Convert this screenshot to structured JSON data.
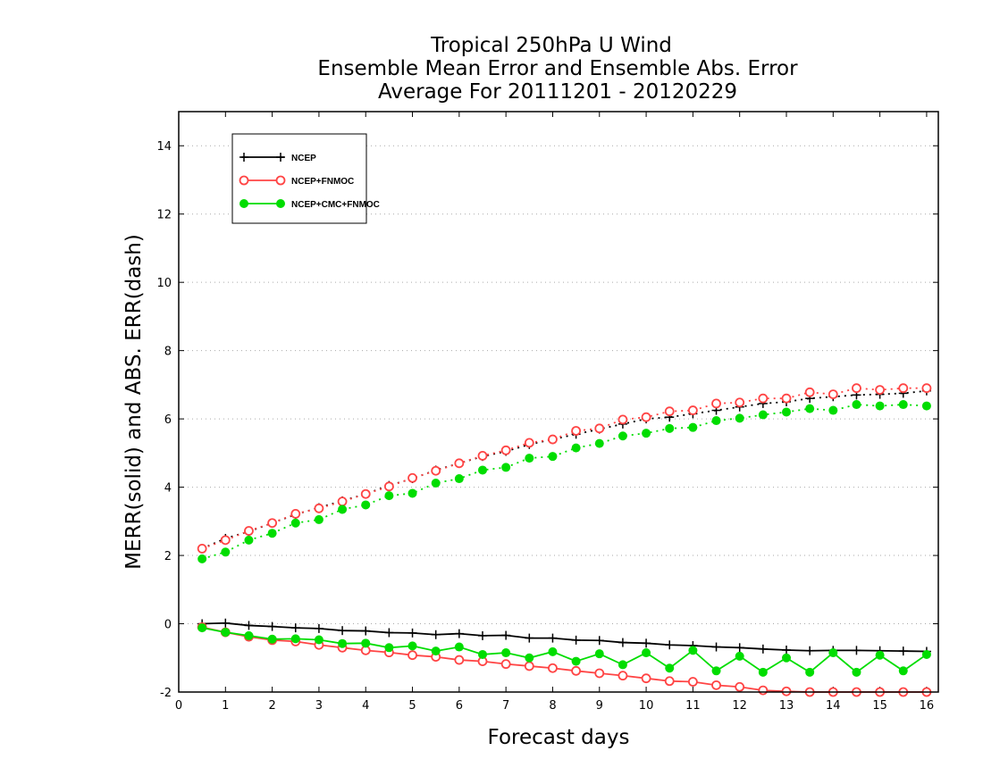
{
  "chart_data": {
    "type": "line",
    "title": [
      "Tropical 250hPa U Wind",
      "Ensemble Mean Error and Ensemble Abs. Error",
      "Average For 20111201 - 20120229"
    ],
    "xlabel": "Forecast days",
    "ylabel": "MERR(solid) and ABS. ERR(dash)",
    "xlim": [
      0,
      16.25
    ],
    "ylim": [
      -2,
      15
    ],
    "xticks": [
      0,
      1,
      2,
      3,
      4,
      5,
      6,
      7,
      8,
      9,
      10,
      11,
      12,
      13,
      14,
      15,
      16
    ],
    "yticks": [
      -2,
      0,
      2,
      4,
      6,
      8,
      10,
      12,
      14
    ],
    "grid": "horizontal dotted",
    "legend_position": "top-left",
    "x": [
      0.5,
      1,
      1.5,
      2,
      2.5,
      3,
      3.5,
      4,
      4.5,
      5,
      5.5,
      6,
      6.5,
      7,
      7.5,
      8,
      8.5,
      9,
      9.5,
      10,
      10.5,
      11,
      11.5,
      12,
      12.5,
      13,
      13.5,
      14,
      14.5,
      15,
      15.5,
      16
    ],
    "series": [
      {
        "name": "NCEP",
        "color": "#000000",
        "marker": "plus",
        "mean_error": [
          0.0,
          0.02,
          -0.05,
          -0.08,
          -0.12,
          -0.14,
          -0.2,
          -0.21,
          -0.26,
          -0.27,
          -0.32,
          -0.29,
          -0.35,
          -0.34,
          -0.42,
          -0.42,
          -0.48,
          -0.49,
          -0.55,
          -0.57,
          -0.62,
          -0.64,
          -0.68,
          -0.7,
          -0.74,
          -0.77,
          -0.79,
          -0.78,
          -0.78,
          -0.79,
          -0.8,
          -0.81
        ],
        "abs_error": [
          2.2,
          2.5,
          2.7,
          2.95,
          3.2,
          3.4,
          3.6,
          3.8,
          4.05,
          4.25,
          4.5,
          4.7,
          4.9,
          5.05,
          5.25,
          5.4,
          5.55,
          5.7,
          5.85,
          6.0,
          6.05,
          6.15,
          6.25,
          6.35,
          6.45,
          6.5,
          6.6,
          6.65,
          6.7,
          6.72,
          6.75,
          6.82
        ]
      },
      {
        "name": "NCEP+FNMOC",
        "color": "#ff4444",
        "marker": "open-circle",
        "mean_error": [
          -0.1,
          -0.25,
          -0.38,
          -0.48,
          -0.52,
          -0.62,
          -0.7,
          -0.78,
          -0.84,
          -0.92,
          -0.97,
          -1.06,
          -1.1,
          -1.18,
          -1.24,
          -1.3,
          -1.38,
          -1.45,
          -1.52,
          -1.6,
          -1.68,
          -1.7,
          -1.8,
          -1.85,
          -1.95,
          -1.98,
          -2.0,
          -2.0,
          -2.0,
          -2.0,
          -2.0,
          -2.0
        ],
        "abs_error": [
          2.2,
          2.45,
          2.72,
          2.95,
          3.22,
          3.38,
          3.58,
          3.8,
          4.02,
          4.27,
          4.48,
          4.7,
          4.92,
          5.08,
          5.3,
          5.4,
          5.65,
          5.72,
          5.98,
          6.05,
          6.22,
          6.25,
          6.45,
          6.48,
          6.6,
          6.6,
          6.78,
          6.72,
          6.9,
          6.85,
          6.9,
          6.9
        ]
      },
      {
        "name": "NCEP+CMC+FNMOC",
        "color": "#00dd00",
        "marker": "filled-circle",
        "mean_error": [
          -0.12,
          -0.25,
          -0.35,
          -0.45,
          -0.44,
          -0.47,
          -0.58,
          -0.57,
          -0.7,
          -0.65,
          -0.8,
          -0.68,
          -0.9,
          -0.85,
          -1.0,
          -0.82,
          -1.1,
          -0.88,
          -1.2,
          -0.85,
          -1.3,
          -0.78,
          -1.38,
          -0.95,
          -1.42,
          -1.0,
          -1.42,
          -0.85,
          -1.42,
          -0.92,
          -1.38,
          -0.9
        ],
        "abs_error": [
          1.9,
          2.1,
          2.45,
          2.65,
          2.95,
          3.05,
          3.35,
          3.48,
          3.75,
          3.82,
          4.12,
          4.25,
          4.5,
          4.58,
          4.85,
          4.9,
          5.15,
          5.28,
          5.5,
          5.58,
          5.72,
          5.75,
          5.95,
          6.02,
          6.12,
          6.2,
          6.3,
          6.25,
          6.42,
          6.38,
          6.42,
          6.38
        ]
      }
    ]
  }
}
